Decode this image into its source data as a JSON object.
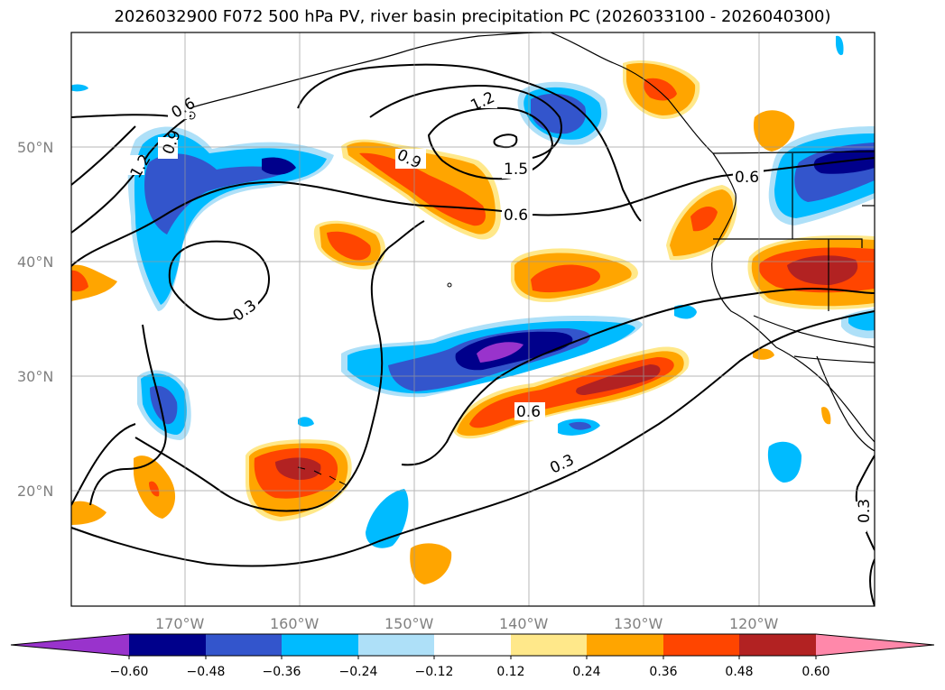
{
  "title": "2026032900 F072 500 hPa PV, river basin precipitation PC (2026033100 - 2026040300)",
  "colors": {
    "n_extreme": "#9933cc",
    "n060": "#00008b",
    "n048": "#3355cc",
    "n036": "#00bbff",
    "n024": "#aee0f8",
    "zero": "#ffffff",
    "p012": "#ffe88a",
    "p024": "#ffa500",
    "p036": "#ff4500",
    "p048": "#b22222",
    "p_extreme": "#ff88aa"
  },
  "map": {
    "lat_labels": [
      "50°N",
      "40°N",
      "30°N",
      "20°N"
    ],
    "lon_labels": [
      "170°W",
      "160°W",
      "150°W",
      "140°W",
      "130°W",
      "120°W"
    ],
    "contour_labels": [
      "1.2",
      "0.9",
      "0.6",
      "1.2",
      "0.9",
      "1.5",
      "0.6",
      "0.6",
      "0.3",
      "0.6",
      "0.3",
      "0.3"
    ]
  },
  "colorbar": {
    "ticks": [
      "−0.60",
      "−0.48",
      "−0.36",
      "−0.24",
      "−0.12",
      "0.12",
      "0.24",
      "0.36",
      "0.48",
      "0.60"
    ]
  }
}
